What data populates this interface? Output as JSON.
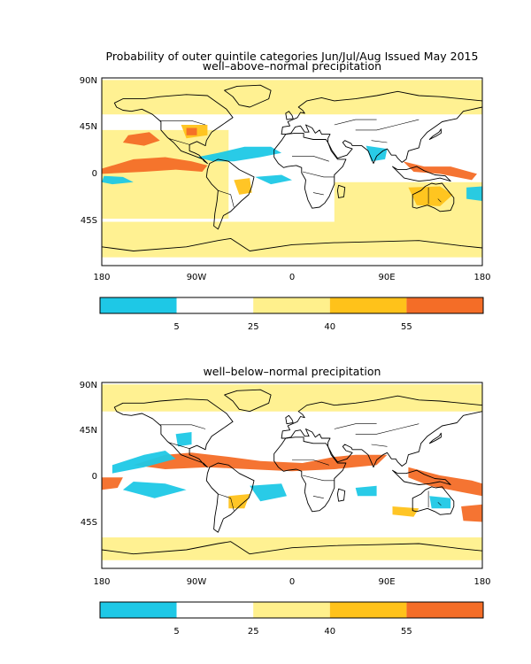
{
  "title": "Probability of outer quintile categories Jun/Jul/Aug Issued May 2015",
  "colors": {
    "cyan": "#1ec8e6",
    "white": "#ffffff",
    "pale_yellow": "#fff08c",
    "gold": "#ffc21a",
    "orange": "#f46d27",
    "frame": "#000000",
    "coast": "#000000"
  },
  "panels": [
    {
      "subtitle": "well–above–normal precipitation",
      "lat_labels": [
        "90N",
        "45N",
        "0",
        "45S"
      ],
      "lon_labels": [
        "180",
        "90W",
        "0",
        "90E",
        "180"
      ]
    },
    {
      "subtitle": "well–below–normal precipitation",
      "lat_labels": [
        "90N",
        "45N",
        "0",
        "45S"
      ],
      "lon_labels": [
        "180",
        "90W",
        "0",
        "90E",
        "180"
      ]
    }
  ],
  "colorbar": {
    "tick_labels": [
      "5",
      "25",
      "40",
      "55"
    ],
    "bins": [
      "cyan",
      "white",
      "pale_yellow",
      "gold",
      "orange"
    ]
  }
}
